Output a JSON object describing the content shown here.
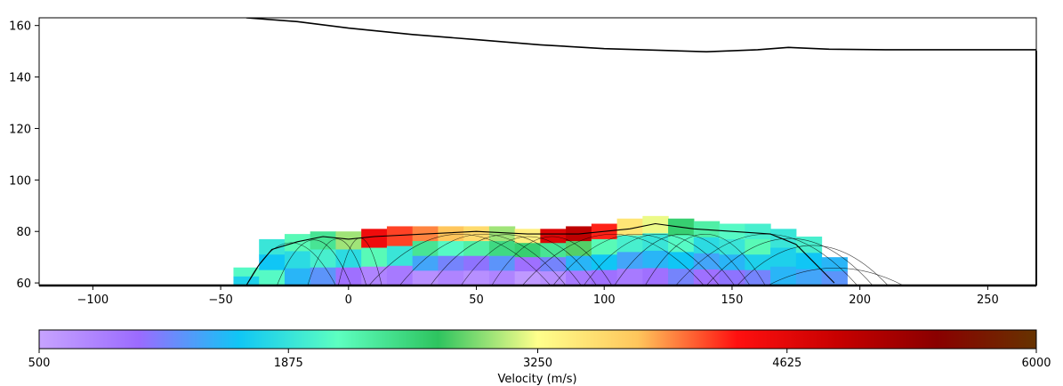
{
  "chart_data": {
    "type": "heatmap",
    "title": "",
    "xlabel": "",
    "ylabel": "",
    "xlim": [
      -121,
      269
    ],
    "ylim": [
      59,
      163
    ],
    "xticks": [
      -100,
      -50,
      0,
      50,
      100,
      150,
      200,
      250
    ],
    "xtick_labels": [
      "−100",
      "−50",
      "0",
      "50",
      "100",
      "150",
      "200",
      "250"
    ],
    "yticks": [
      60,
      80,
      100,
      120,
      140,
      160
    ],
    "ytick_labels": [
      "60",
      "80",
      "100",
      "120",
      "140",
      "160"
    ],
    "colorbar": {
      "label": "Velocity (m/s)",
      "ticks": [
        500,
        1875,
        3250,
        4625,
        6000
      ],
      "tick_labels": [
        "500",
        "1875",
        "3250",
        "4625",
        "6000"
      ],
      "range": [
        500,
        6000
      ],
      "colors": [
        "#c7a3ff",
        "#9b6bff",
        "#10c6f5",
        "#5dffc0",
        "#2ec45f",
        "#ffff8c",
        "#ffc65c",
        "#ff1010",
        "#c80000",
        "#8a0000",
        "#663300"
      ]
    },
    "surface_profile": {
      "x": [
        -40,
        -20,
        0,
        25,
        50,
        75,
        100,
        125,
        140,
        160,
        172,
        188,
        210,
        269
      ],
      "y": [
        163,
        161.5,
        159,
        156.5,
        154.5,
        152.5,
        151,
        150.3,
        149.8,
        150.6,
        151.5,
        150.8,
        150.6,
        150.6
      ]
    },
    "velocity_cells": [
      {
        "x": -40,
        "vel": [
          2100,
          1700
        ]
      },
      {
        "x": -30,
        "vel": [
          1900,
          1600,
          2100
        ]
      },
      {
        "x": -20,
        "vel": [
          2200,
          1800,
          1500
        ]
      },
      {
        "x": -10,
        "vel": [
          2400,
          2000,
          1300
        ]
      },
      {
        "x": 0,
        "vel": [
          3000,
          1800,
          1000
        ]
      },
      {
        "x": 10,
        "vel": [
          4500,
          2200,
          800
        ]
      },
      {
        "x": 20,
        "vel": [
          4200,
          1900,
          900
        ]
      },
      {
        "x": 30,
        "vel": [
          4000,
          2400,
          1400,
          700
        ]
      },
      {
        "x": 40,
        "vel": [
          3800,
          2100,
          1200,
          800
        ]
      },
      {
        "x": 50,
        "vel": [
          3600,
          2300,
          1100,
          700
        ]
      },
      {
        "x": 60,
        "vel": [
          3000,
          2500,
          1300,
          800
        ]
      },
      {
        "x": 70,
        "vel": [
          3400,
          2600,
          1000,
          600
        ]
      },
      {
        "x": 80,
        "vel": [
          4700,
          2400,
          1200,
          700
        ]
      },
      {
        "x": 90,
        "vel": [
          5000,
          2800,
          1500,
          900
        ]
      },
      {
        "x": 100,
        "vel": [
          4300,
          2200,
          1600,
          1000
        ]
      },
      {
        "x": 110,
        "vel": [
          3500,
          2000,
          1400,
          900
        ]
      },
      {
        "x": 120,
        "vel": [
          3200,
          1900,
          1500,
          1000
        ]
      },
      {
        "x": 130,
        "vel": [
          2600,
          2100,
          1600,
          1200
        ]
      },
      {
        "x": 140,
        "vel": [
          2300,
          1800,
          1400,
          1000
        ]
      },
      {
        "x": 150,
        "vel": [
          2100,
          1900,
          1500,
          1100
        ]
      },
      {
        "x": 160,
        "vel": [
          2000,
          2200,
          1700,
          1200
        ]
      },
      {
        "x": 170,
        "vel": [
          1900,
          1700,
          1500
        ]
      },
      {
        "x": 180,
        "vel": [
          2000,
          1600,
          1400
        ]
      },
      {
        "x": 190,
        "vel": [
          1500,
          1300
        ]
      }
    ],
    "velocity_coverage": {
      "x": [
        -44,
        -40,
        -35,
        -30,
        -20,
        -10,
        0,
        10,
        20,
        30,
        40,
        50,
        60,
        70,
        80,
        90,
        100,
        110,
        120,
        130,
        140,
        150,
        160,
        170,
        180,
        185,
        190,
        193
      ],
      "top": [
        59,
        66,
        74,
        77,
        79,
        80,
        80,
        81,
        82,
        82,
        82,
        82,
        82,
        81,
        81,
        82,
        83,
        85,
        86,
        85,
        84,
        83,
        83,
        81,
        78,
        76,
        70,
        59
      ],
      "bottom": 59
    },
    "ray_boundary": {
      "x": [
        -40,
        -35,
        -30,
        -20,
        -10,
        0,
        10,
        30,
        50,
        70,
        90,
        110,
        120,
        135,
        150,
        165,
        175,
        180,
        185,
        190
      ],
      "y": [
        59,
        67,
        73,
        76,
        78,
        77,
        78,
        79,
        80,
        79,
        79,
        81,
        83,
        81,
        80,
        79,
        75,
        70,
        65,
        60
      ]
    }
  }
}
